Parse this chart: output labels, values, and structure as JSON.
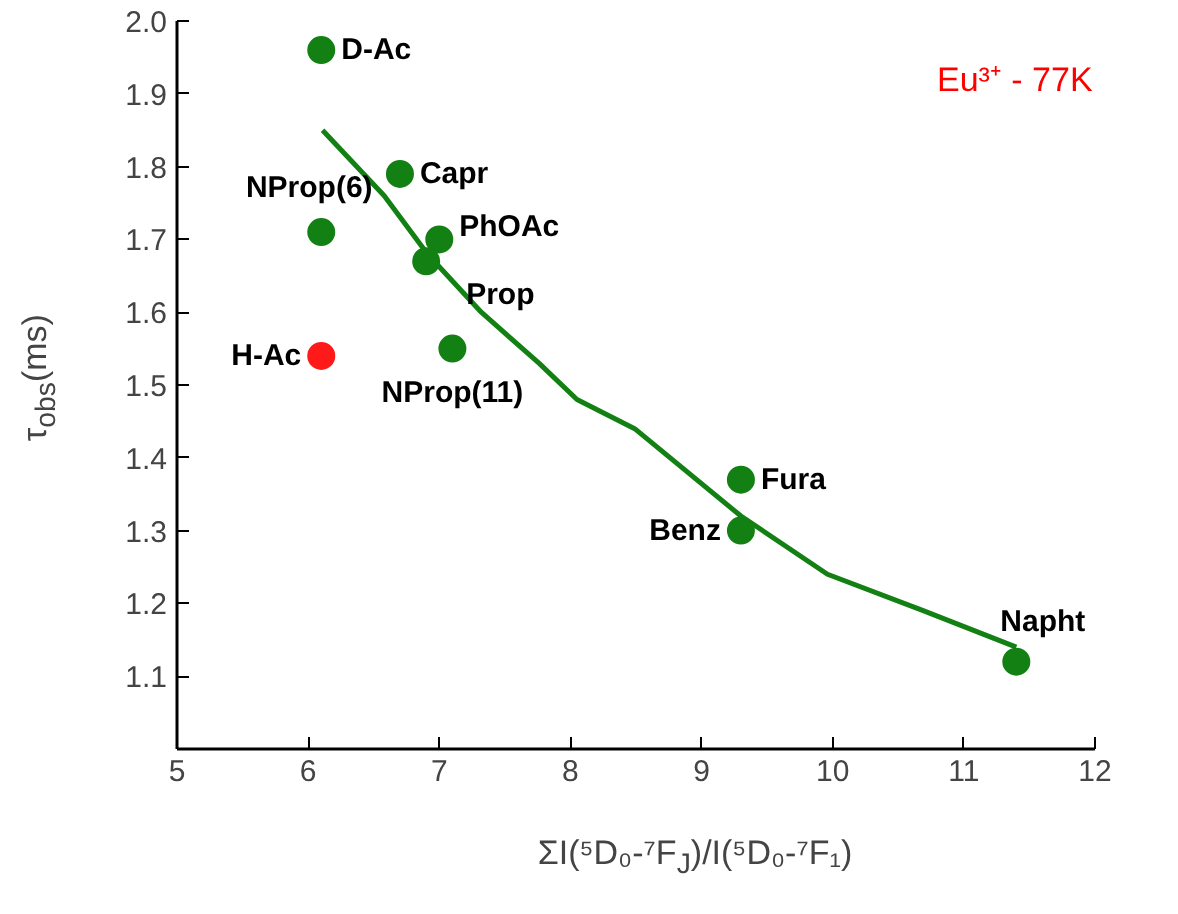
{
  "chart_data": {
    "type": "scatter",
    "xlabel": "ΣI(⁵D₀-⁷F$_{J}$)/I(⁵D₀-⁷F₁)",
    "ylabel": "τ$_{obs}$(ms)",
    "xlim": [
      5,
      12
    ],
    "xticks": [
      5,
      6,
      7,
      8,
      9,
      10,
      11,
      12
    ],
    "ylim": [
      1.0,
      2.0
    ],
    "yticks": [
      {
        "value": 1.0,
        "label": null
      },
      1.1,
      1.2,
      1.3,
      1.4,
      1.5,
      1.6,
      1.7,
      1.8,
      1.9,
      {
        "value": 2.0,
        "label": "2.0"
      }
    ],
    "grid": false,
    "series": [
      {
        "marker": "circle",
        "x": [
          6.1,
          6.7,
          6.1,
          7.0,
          6.9,
          6.1,
          7.1,
          9.3,
          9.3,
          11.4
        ],
        "values": [
          1.96,
          1.79,
          1.71,
          1.7,
          1.67,
          1.54,
          1.55,
          1.37,
          1.3,
          1.12
        ],
        "colors": [
          "#138013",
          "#138013",
          "#138013",
          "#138013",
          "#138013",
          "#ff1a1a",
          "#138013",
          "#138013",
          "#138013",
          "#138013"
        ]
      },
      {
        "type": "line",
        "color": "#138013",
        "x": [
          6.11,
          6.58,
          6.91,
          7.32,
          7.76,
          8.05,
          8.49,
          9.3,
          9.96,
          10.69,
          11.4
        ],
        "values": [
          1.85,
          1.76,
          1.68,
          1.6,
          1.53,
          1.48,
          1.44,
          1.32,
          1.24,
          1.19,
          1.14
        ],
        "line_style": "solid"
      }
    ],
    "annotations": [
      {
        "text": "D-Ac",
        "x": 6.1,
        "y": 1.96
      },
      {
        "text": "Capr",
        "x": 6.7,
        "y": 1.79
      },
      {
        "text": "NProp(6)",
        "x": 6.1,
        "y": 1.71
      },
      {
        "text": "PhOAc",
        "x": 7.0,
        "y": 1.7
      },
      {
        "text": "Prop",
        "x": 6.9,
        "y": 1.67
      },
      {
        "text": "H-Ac",
        "x": 6.1,
        "y": 1.54
      },
      {
        "text": "NProp(11)",
        "x": 7.1,
        "y": 1.55
      },
      {
        "text": "Fura",
        "x": 9.3,
        "y": 1.37
      },
      {
        "text": "Benz",
        "x": 9.3,
        "y": 1.3
      },
      {
        "text": "Napht",
        "x": 11.4,
        "y": 1.12
      },
      "Eu³⁺ - 77K"
    ]
  }
}
